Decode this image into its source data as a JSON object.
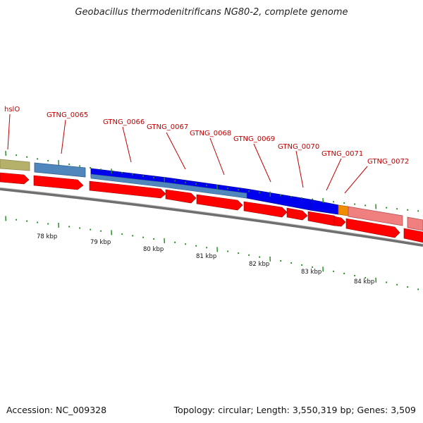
{
  "title": "Geobacillus thermodenitrificans NG80-2, complete genome",
  "footer": {
    "accession": "Accession: NC_009328",
    "summary": "Topology: circular; Length: 3,550,319 bp; Genes: 3,509"
  },
  "colors": {
    "gene_label": "#c00000",
    "cds_red": "#ff0000",
    "blue": "#0000ee",
    "steelblue": "#4f87bd",
    "olive": "#b5b06a",
    "orange": "#f08c00",
    "pink": "#f08080",
    "tick_green": "#1a8a1a",
    "backbone": "#888888"
  },
  "gene_labels": [
    "hslO",
    "GTNG_0065",
    "GTNG_0066",
    "GTNG_0067",
    "GTNG_0068",
    "GTNG_0069",
    "GTNG_0070",
    "GTNG_0071",
    "GTNG_0072"
  ],
  "kbp_labels": [
    "78 kbp",
    "79 kbp",
    "80 kbp",
    "81 kbp",
    "82 kbp",
    "83 kbp",
    "84 kbp"
  ]
}
